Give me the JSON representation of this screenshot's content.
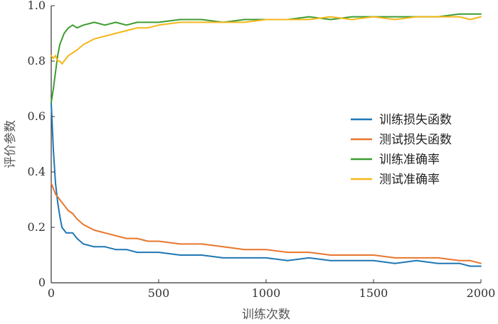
{
  "chart_data": {
    "type": "line",
    "title": "",
    "xlabel": "训练次数",
    "ylabel": "评价参数",
    "xlim": [
      0,
      2000
    ],
    "ylim": [
      0,
      1.0
    ],
    "xticks": [
      "0",
      "500",
      "1000",
      "1500",
      "2000"
    ],
    "yticks": [
      "0",
      "0.2",
      "0.4",
      "0.6",
      "0.8",
      "1.0"
    ],
    "legend_position": "right-middle",
    "grid": false,
    "x": [
      0,
      10,
      20,
      30,
      40,
      50,
      60,
      70,
      80,
      100,
      120,
      150,
      200,
      250,
      300,
      350,
      400,
      450,
      500,
      600,
      700,
      800,
      900,
      1000,
      1100,
      1200,
      1300,
      1400,
      1500,
      1600,
      1700,
      1800,
      1900,
      1950,
      2000
    ],
    "series": [
      {
        "name": "训练损失函数",
        "color": "#1f77b4",
        "values": [
          0.65,
          0.48,
          0.36,
          0.29,
          0.24,
          0.2,
          0.19,
          0.18,
          0.18,
          0.18,
          0.16,
          0.14,
          0.13,
          0.13,
          0.12,
          0.12,
          0.11,
          0.11,
          0.11,
          0.1,
          0.1,
          0.09,
          0.09,
          0.09,
          0.08,
          0.09,
          0.08,
          0.08,
          0.08,
          0.07,
          0.08,
          0.07,
          0.07,
          0.06,
          0.06
        ]
      },
      {
        "name": "测试损失函数",
        "color": "#e8762d",
        "values": [
          0.36,
          0.34,
          0.32,
          0.31,
          0.3,
          0.29,
          0.28,
          0.27,
          0.26,
          0.25,
          0.23,
          0.21,
          0.19,
          0.18,
          0.17,
          0.16,
          0.16,
          0.15,
          0.15,
          0.14,
          0.14,
          0.13,
          0.12,
          0.12,
          0.11,
          0.11,
          0.1,
          0.1,
          0.1,
          0.09,
          0.09,
          0.09,
          0.08,
          0.08,
          0.07
        ]
      },
      {
        "name": "训练准确率",
        "color": "#3e9c32",
        "values": [
          0.65,
          0.7,
          0.76,
          0.82,
          0.86,
          0.88,
          0.9,
          0.91,
          0.92,
          0.93,
          0.92,
          0.93,
          0.94,
          0.93,
          0.94,
          0.93,
          0.94,
          0.94,
          0.94,
          0.95,
          0.95,
          0.94,
          0.95,
          0.95,
          0.95,
          0.96,
          0.95,
          0.96,
          0.96,
          0.96,
          0.96,
          0.96,
          0.97,
          0.97,
          0.97
        ]
      },
      {
        "name": "测试准确率",
        "color": "#f5b71b",
        "values": [
          0.82,
          0.81,
          0.82,
          0.8,
          0.8,
          0.79,
          0.8,
          0.81,
          0.82,
          0.83,
          0.84,
          0.86,
          0.88,
          0.89,
          0.9,
          0.91,
          0.92,
          0.92,
          0.93,
          0.94,
          0.94,
          0.94,
          0.94,
          0.95,
          0.95,
          0.95,
          0.96,
          0.95,
          0.96,
          0.95,
          0.96,
          0.96,
          0.96,
          0.95,
          0.96
        ]
      }
    ]
  }
}
